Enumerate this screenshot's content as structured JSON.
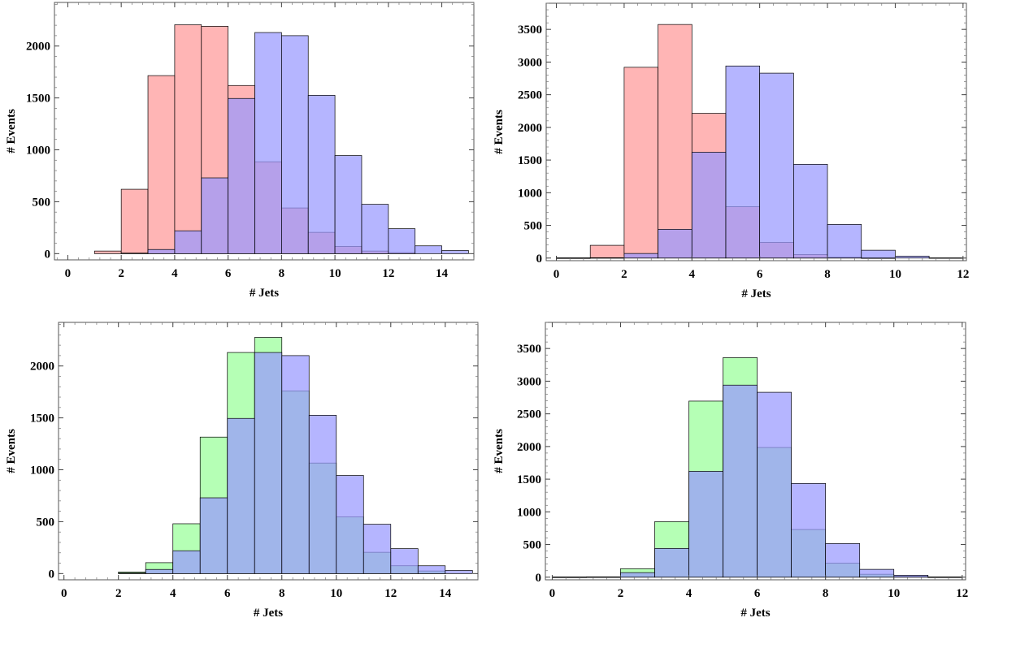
{
  "chart_data": [
    {
      "type": "histogram",
      "xlabel": "# Jets",
      "ylabel": "# Events",
      "xlim": [
        -0.5,
        15.2
      ],
      "ylim": [
        -60,
        2420
      ],
      "xticks": [
        0,
        2,
        4,
        6,
        8,
        10,
        12,
        14
      ],
      "yticks": [
        0,
        500,
        1000,
        1500,
        2000
      ],
      "bin_width": 1,
      "series": [
        {
          "color": "#ff9999",
          "bins": [
            [
              1,
              25
            ],
            [
              2,
              620
            ],
            [
              3,
              1715
            ],
            [
              4,
              2205
            ],
            [
              5,
              2190
            ],
            [
              6,
              1620
            ],
            [
              7,
              885
            ],
            [
              8,
              440
            ],
            [
              9,
              205
            ],
            [
              10,
              70
            ],
            [
              11,
              25
            ],
            [
              12,
              10
            ]
          ]
        },
        {
          "color": "#9999ff",
          "bins": [
            [
              2,
              5
            ],
            [
              3,
              40
            ],
            [
              4,
              220
            ],
            [
              5,
              730
            ],
            [
              6,
              1495
            ],
            [
              7,
              2130
            ],
            [
              8,
              2100
            ],
            [
              9,
              1525
            ],
            [
              10,
              945
            ],
            [
              11,
              475
            ],
            [
              12,
              240
            ],
            [
              13,
              75
            ],
            [
              14,
              30
            ]
          ]
        }
      ]
    },
    {
      "type": "histogram",
      "xlabel": "# Jets",
      "ylabel": "# Events",
      "xlim": [
        -0.3,
        12.1
      ],
      "ylim": [
        -40,
        3900
      ],
      "xticks": [
        0,
        2,
        4,
        6,
        8,
        10,
        12
      ],
      "yticks": [
        0,
        500,
        1000,
        1500,
        2000,
        2500,
        3000,
        3500
      ],
      "bin_width": 1,
      "series": [
        {
          "color": "#ff9999",
          "bins": [
            [
              0,
              2
            ],
            [
              1,
              195
            ],
            [
              2,
              2920
            ],
            [
              3,
              3575
            ],
            [
              4,
              2215
            ],
            [
              5,
              785
            ],
            [
              6,
              240
            ],
            [
              7,
              55
            ],
            [
              8,
              10
            ],
            [
              9,
              2
            ]
          ]
        },
        {
          "color": "#9999ff",
          "bins": [
            [
              0,
              2
            ],
            [
              1,
              5
            ],
            [
              2,
              70
            ],
            [
              3,
              440
            ],
            [
              4,
              1620
            ],
            [
              5,
              2940
            ],
            [
              6,
              2830
            ],
            [
              7,
              1435
            ],
            [
              8,
              515
            ],
            [
              9,
              120
            ],
            [
              10,
              30
            ],
            [
              11,
              3
            ]
          ]
        }
      ]
    },
    {
      "type": "histogram",
      "xlabel": "# Jets",
      "ylabel": "# Events",
      "xlim": [
        -0.2,
        15.2
      ],
      "ylim": [
        -60,
        2420
      ],
      "xticks": [
        0,
        2,
        4,
        6,
        8,
        10,
        12,
        14
      ],
      "yticks": [
        0,
        500,
        1000,
        1500,
        2000
      ],
      "bin_width": 1,
      "series": [
        {
          "color": "#99ff99",
          "bins": [
            [
              2,
              15
            ],
            [
              3,
              105
            ],
            [
              4,
              480
            ],
            [
              5,
              1315
            ],
            [
              6,
              2130
            ],
            [
              7,
              2275
            ],
            [
              8,
              1760
            ],
            [
              9,
              1065
            ],
            [
              10,
              545
            ],
            [
              11,
              205
            ],
            [
              12,
              75
            ],
            [
              13,
              25
            ]
          ]
        },
        {
          "color": "#9999ff",
          "bins": [
            [
              2,
              5
            ],
            [
              3,
              40
            ],
            [
              4,
              220
            ],
            [
              5,
              730
            ],
            [
              6,
              1495
            ],
            [
              7,
              2130
            ],
            [
              8,
              2100
            ],
            [
              9,
              1525
            ],
            [
              10,
              945
            ],
            [
              11,
              475
            ],
            [
              12,
              240
            ],
            [
              13,
              75
            ],
            [
              14,
              30
            ]
          ]
        }
      ]
    },
    {
      "type": "histogram",
      "xlabel": "# Jets",
      "ylabel": "# Events",
      "xlim": [
        -0.2,
        12.1
      ],
      "ylim": [
        -40,
        3900
      ],
      "xticks": [
        0,
        2,
        4,
        6,
        8,
        10,
        12
      ],
      "yticks": [
        0,
        500,
        1000,
        1500,
        2000,
        2500,
        3000,
        3500
      ],
      "bin_width": 1,
      "series": [
        {
          "color": "#99ff99",
          "bins": [
            [
              0,
              2
            ],
            [
              1,
              5
            ],
            [
              2,
              130
            ],
            [
              3,
              850
            ],
            [
              4,
              2695
            ],
            [
              5,
              3360
            ],
            [
              6,
              1985
            ],
            [
              7,
              730
            ],
            [
              8,
              215
            ],
            [
              9,
              45
            ],
            [
              10,
              10
            ],
            [
              11,
              2
            ]
          ]
        },
        {
          "color": "#9999ff",
          "bins": [
            [
              0,
              2
            ],
            [
              1,
              5
            ],
            [
              2,
              70
            ],
            [
              3,
              440
            ],
            [
              4,
              1620
            ],
            [
              5,
              2940
            ],
            [
              6,
              2830
            ],
            [
              7,
              1435
            ],
            [
              8,
              515
            ],
            [
              9,
              120
            ],
            [
              10,
              30
            ],
            [
              11,
              3
            ]
          ]
        }
      ]
    }
  ]
}
